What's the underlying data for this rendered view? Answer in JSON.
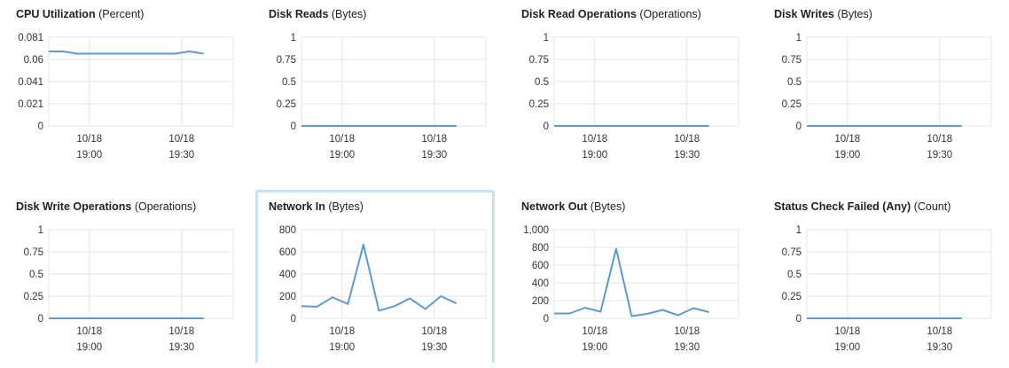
{
  "accent": "#5b9bd5",
  "highlight_border": "#c9dff5",
  "chart_data": [
    {
      "type": "line",
      "title": "CPU Utilization",
      "unit": "(Percent)",
      "yticks": [
        "0.081",
        "0.06",
        "0.041",
        "0.021",
        "0"
      ],
      "ylim": [
        0,
        0.081
      ],
      "xticks": [
        [
          "10/18",
          "19:00"
        ],
        [
          "10/18",
          "19:30"
        ]
      ],
      "series": [
        {
          "values": [
            0.068,
            0.068,
            0.066,
            0.066,
            0.066,
            0.066,
            0.066,
            0.066,
            0.066,
            0.066,
            0.068,
            0.066
          ]
        }
      ]
    },
    {
      "type": "line",
      "title": "Disk Reads",
      "unit": "(Bytes)",
      "yticks": [
        "1",
        "0.75",
        "0.5",
        "0.25",
        "0"
      ],
      "ylim": [
        0,
        1
      ],
      "xticks": [
        [
          "10/18",
          "19:00"
        ],
        [
          "10/18",
          "19:30"
        ]
      ],
      "series": [
        {
          "values": [
            0,
            0,
            0,
            0,
            0,
            0,
            0,
            0,
            0,
            0,
            0,
            0
          ]
        }
      ]
    },
    {
      "type": "line",
      "title": "Disk Read Operations",
      "unit": "(Operations)",
      "yticks": [
        "1",
        "0.75",
        "0.5",
        "0.25",
        "0"
      ],
      "ylim": [
        0,
        1
      ],
      "xticks": [
        [
          "10/18",
          "19:00"
        ],
        [
          "10/18",
          "19:30"
        ]
      ],
      "series": [
        {
          "values": [
            0,
            0,
            0,
            0,
            0,
            0,
            0,
            0,
            0,
            0,
            0,
            0
          ]
        }
      ]
    },
    {
      "type": "line",
      "title": "Disk Writes",
      "unit": "(Bytes)",
      "yticks": [
        "1",
        "0.75",
        "0.5",
        "0.25",
        "0"
      ],
      "ylim": [
        0,
        1
      ],
      "xticks": [
        [
          "10/18",
          "19:00"
        ],
        [
          "10/18",
          "19:30"
        ]
      ],
      "series": [
        {
          "values": [
            0,
            0,
            0,
            0,
            0,
            0,
            0,
            0,
            0,
            0,
            0,
            0
          ]
        }
      ]
    },
    {
      "type": "line",
      "title": "Disk Write Operations",
      "unit": "(Operations)",
      "yticks": [
        "1",
        "0.75",
        "0.5",
        "0.25",
        "0"
      ],
      "ylim": [
        0,
        1
      ],
      "xticks": [
        [
          "10/18",
          "19:00"
        ],
        [
          "10/18",
          "19:30"
        ]
      ],
      "series": [
        {
          "values": [
            0,
            0,
            0,
            0,
            0,
            0,
            0,
            0,
            0,
            0,
            0,
            0
          ]
        }
      ]
    },
    {
      "type": "line",
      "title": "Network In",
      "unit": "(Bytes)",
      "selected": true,
      "yticks": [
        "800",
        "600",
        "400",
        "200",
        "0"
      ],
      "ylim": [
        0,
        800
      ],
      "xticks": [
        [
          "10/18",
          "19:00"
        ],
        [
          "10/18",
          "19:30"
        ]
      ],
      "series": [
        {
          "values": [
            110,
            105,
            190,
            130,
            665,
            70,
            110,
            180,
            85,
            200,
            135
          ]
        }
      ]
    },
    {
      "type": "line",
      "title": "Network Out",
      "unit": "(Bytes)",
      "yticks": [
        "1,000",
        "800",
        "600",
        "400",
        "200",
        "0"
      ],
      "ylim": [
        0,
        1000
      ],
      "xticks": [
        [
          "10/18",
          "19:00"
        ],
        [
          "10/18",
          "19:30"
        ]
      ],
      "series": [
        {
          "values": [
            55,
            55,
            120,
            75,
            785,
            25,
            50,
            95,
            35,
            115,
            70
          ]
        }
      ]
    },
    {
      "type": "line",
      "title": "Status Check Failed (Any)",
      "unit": "(Count)",
      "yticks": [
        "1",
        "0.75",
        "0.5",
        "0.25",
        "0"
      ],
      "ylim": [
        0,
        1
      ],
      "xticks": [
        [
          "10/18",
          "19:00"
        ],
        [
          "10/18",
          "19:30"
        ]
      ],
      "series": [
        {
          "values": [
            0,
            0,
            0,
            0,
            0,
            0,
            0,
            0,
            0,
            0,
            0,
            0
          ]
        }
      ]
    }
  ]
}
